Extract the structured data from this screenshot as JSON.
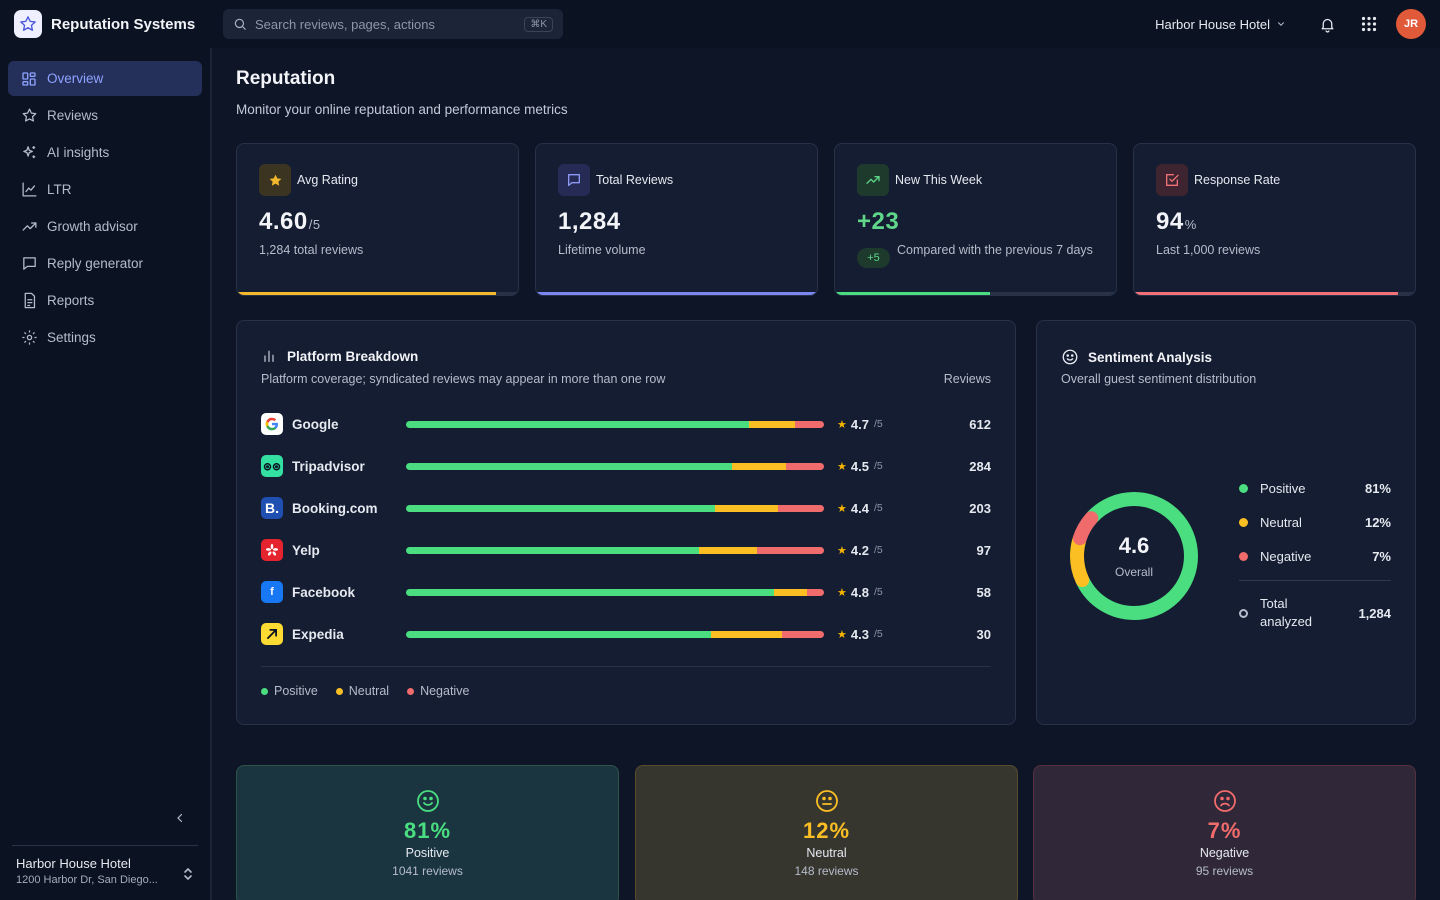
{
  "app": {
    "name": "Reputation Systems"
  },
  "search": {
    "placeholder": "Search reviews, pages, actions",
    "shortcut": "⌘K"
  },
  "topbar": {
    "hotel": "Harbor House Hotel",
    "avatar_initials": "JR"
  },
  "sidebar": {
    "items": [
      {
        "label": "Overview",
        "icon": "grid-icon",
        "active": true
      },
      {
        "label": "Reviews",
        "icon": "star-icon"
      },
      {
        "label": "AI insights",
        "icon": "sparkle-icon"
      },
      {
        "label": "LTR",
        "icon": "line-chart-icon"
      },
      {
        "label": "Growth advisor",
        "icon": "trending-up-icon"
      },
      {
        "label": "Reply generator",
        "icon": "message-icon"
      },
      {
        "label": "Reports",
        "icon": "document-icon"
      },
      {
        "label": "Settings",
        "icon": "gear-icon"
      }
    ],
    "footer": {
      "hotel": "Harbor House Hotel",
      "address": "1200 Harbor Dr, San Diego..."
    }
  },
  "page": {
    "title": "Reputation",
    "subtitle": "Monitor your online reputation and performance metrics"
  },
  "stats": [
    {
      "label": "Avg Rating",
      "value": "4.60",
      "suffix": "/5",
      "note": "1,284 total reviews",
      "color": "#f4b82c",
      "progress": 0.92
    },
    {
      "label": "Total Reviews",
      "value": "1,284",
      "suffix": "",
      "note": "Lifetime volume",
      "color": "#7b86f0",
      "progress": 1.0
    },
    {
      "label": "New This Week",
      "value": "+23",
      "suffix": "",
      "delta": "+5",
      "note": "Compared with the previous 7 days",
      "color": "#4ade80",
      "progress": 0.55
    },
    {
      "label": "Response Rate",
      "value": "94",
      "suffix": "%",
      "note": "Last 1,000 reviews",
      "color": "#f07178",
      "progress": 0.94
    }
  ],
  "platforms": {
    "title": "Platform Breakdown",
    "subtitle": "Platform coverage; syndicated reviews may appear in more than one row",
    "column_header": "Reviews",
    "rows": [
      {
        "name": "Google",
        "rating": "4.7",
        "of": "/5",
        "count": "612",
        "positive": 0.82,
        "neutral": 0.11,
        "negative": 0.07
      },
      {
        "name": "Tripadvisor",
        "rating": "4.5",
        "of": "/5",
        "count": "284",
        "positive": 0.78,
        "neutral": 0.13,
        "negative": 0.09
      },
      {
        "name": "Booking.com",
        "rating": "4.4",
        "of": "/5",
        "count": "203",
        "positive": 0.74,
        "neutral": 0.15,
        "negative": 0.11
      },
      {
        "name": "Yelp",
        "rating": "4.2",
        "of": "/5",
        "count": "97",
        "positive": 0.7,
        "neutral": 0.14,
        "negative": 0.16
      },
      {
        "name": "Facebook",
        "rating": "4.8",
        "of": "/5",
        "count": "58",
        "positive": 0.88,
        "neutral": 0.08,
        "negative": 0.04
      },
      {
        "name": "Expedia",
        "rating": "4.3",
        "of": "/5",
        "count": "30",
        "positive": 0.73,
        "neutral": 0.17,
        "negative": 0.1
      }
    ],
    "legend": {
      "positive": "Positive",
      "neutral": "Neutral",
      "negative": "Negative"
    }
  },
  "sentiment": {
    "title": "Sentiment Analysis",
    "subtitle": "Overall guest sentiment distribution",
    "score": "4.6",
    "score_label": "Overall",
    "rows": [
      {
        "name": "Positive",
        "pct": "81%",
        "value": 81,
        "color": "#4ade80"
      },
      {
        "name": "Neutral",
        "pct": "12%",
        "value": 12,
        "color": "#fbbf24"
      },
      {
        "name": "Negative",
        "pct": "7%",
        "value": 7,
        "color": "#f06b6b"
      }
    ],
    "total_label": "Total analyzed",
    "total_value": "1,284"
  },
  "summary": [
    {
      "pct": "81%",
      "label": "Positive",
      "count": "1041 reviews",
      "color": "#4ade80"
    },
    {
      "pct": "12%",
      "label": "Neutral",
      "count": "148 reviews",
      "color": "#fbbf24"
    },
    {
      "pct": "7%",
      "label": "Negative",
      "count": "95 reviews",
      "color": "#f06b6b"
    }
  ],
  "colors": {
    "positive": "#4ade80",
    "neutral": "#fbbf24",
    "negative": "#f06b6b",
    "accent": "#8ea2ff"
  }
}
